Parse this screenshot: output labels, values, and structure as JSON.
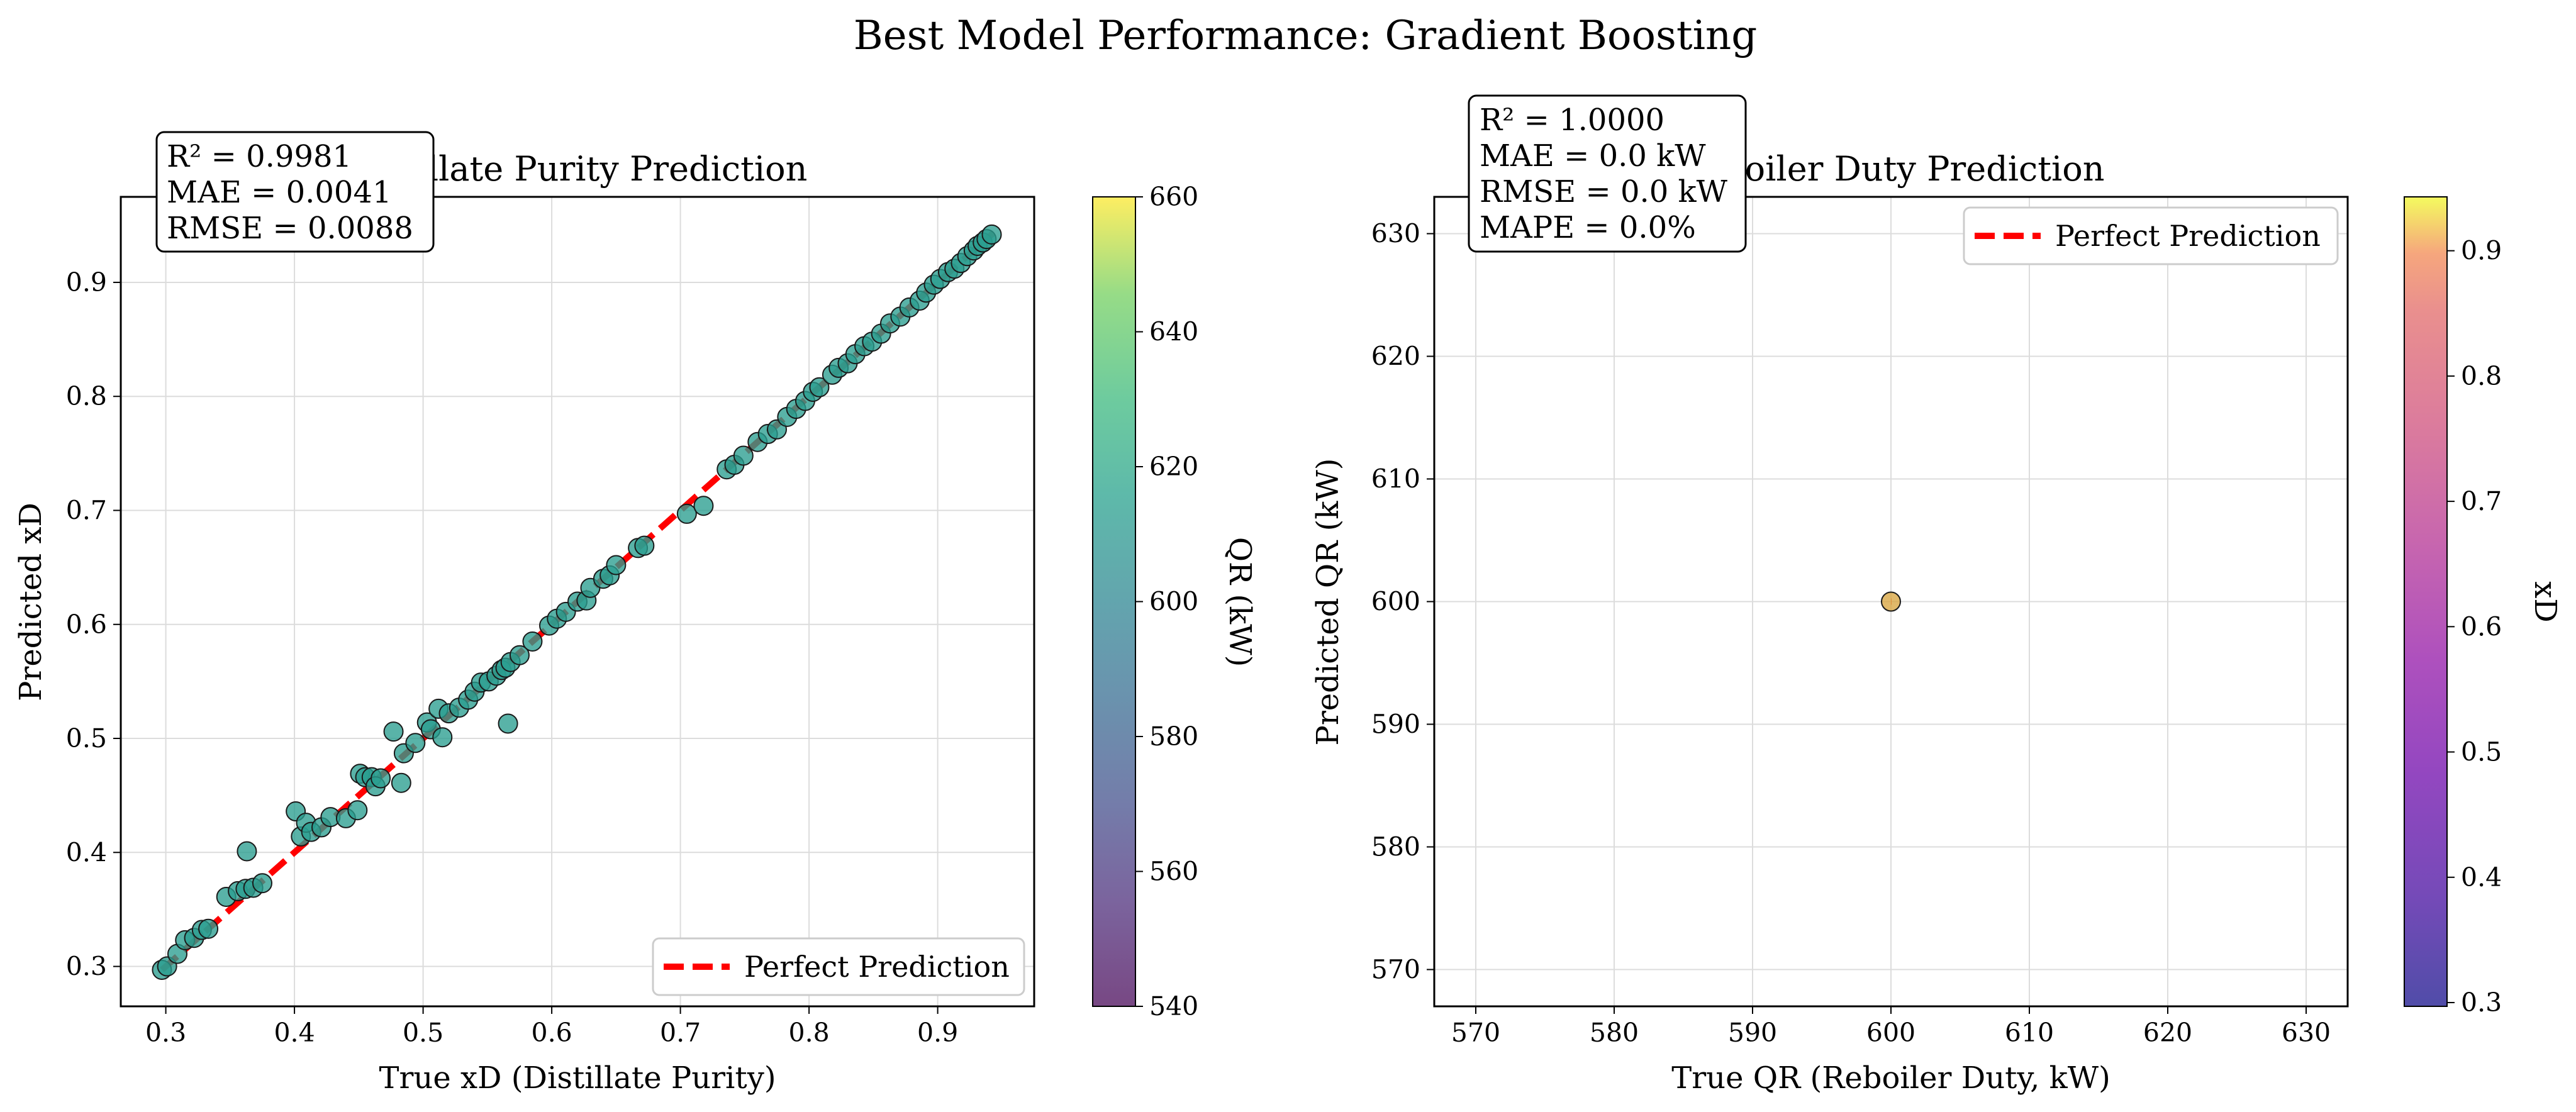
{
  "figure": {
    "suptitle": "Best Model Performance: Gradient Boosting"
  },
  "chart_data": [
    {
      "type": "scatter",
      "title": "Distillate Purity Prediction",
      "xlabel": "True xD (Distillate Purity)",
      "ylabel": "Predicted xD",
      "xlim": [
        0.265,
        0.975
      ],
      "ylim": [
        0.265,
        0.975
      ],
      "xticks": [
        "0.3",
        "0.4",
        "0.5",
        "0.6",
        "0.7",
        "0.8",
        "0.9"
      ],
      "yticks": [
        "0.3",
        "0.4",
        "0.5",
        "0.6",
        "0.7",
        "0.8",
        "0.9"
      ],
      "grid": true,
      "legend": {
        "placement": "lower-right",
        "entries": [
          "Perfect Prediction"
        ]
      },
      "reference_line": {
        "name": "Perfect Prediction",
        "from": [
          0.297,
          0.297
        ],
        "to": [
          0.943,
          0.943
        ],
        "color": "#ff0000",
        "style": "dashed"
      },
      "point_color": "#2a9d8f",
      "stats_box": [
        "R² = 0.9981",
        "MAE = 0.0041",
        "RMSE = 0.0088"
      ],
      "colorbar": {
        "label": "QR (kW)",
        "range": [
          540,
          660
        ],
        "ticks": [
          "540",
          "560",
          "580",
          "600",
          "620",
          "640",
          "660"
        ],
        "colormap": "viridis"
      },
      "points": [
        [
          0.297,
          0.297
        ],
        [
          0.301,
          0.3
        ],
        [
          0.309,
          0.311
        ],
        [
          0.315,
          0.323
        ],
        [
          0.322,
          0.325
        ],
        [
          0.328,
          0.332
        ],
        [
          0.333,
          0.333
        ],
        [
          0.347,
          0.361
        ],
        [
          0.356,
          0.366
        ],
        [
          0.362,
          0.368
        ],
        [
          0.363,
          0.401
        ],
        [
          0.368,
          0.369
        ],
        [
          0.375,
          0.373
        ],
        [
          0.401,
          0.436
        ],
        [
          0.405,
          0.414
        ],
        [
          0.409,
          0.426
        ],
        [
          0.413,
          0.418
        ],
        [
          0.421,
          0.422
        ],
        [
          0.428,
          0.431
        ],
        [
          0.44,
          0.43
        ],
        [
          0.449,
          0.437
        ],
        [
          0.451,
          0.469
        ],
        [
          0.455,
          0.466
        ],
        [
          0.46,
          0.466
        ],
        [
          0.463,
          0.458
        ],
        [
          0.467,
          0.465
        ],
        [
          0.477,
          0.506
        ],
        [
          0.483,
          0.461
        ],
        [
          0.485,
          0.487
        ],
        [
          0.494,
          0.496
        ],
        [
          0.503,
          0.514
        ],
        [
          0.506,
          0.508
        ],
        [
          0.512,
          0.526
        ],
        [
          0.515,
          0.501
        ],
        [
          0.52,
          0.522
        ],
        [
          0.528,
          0.527
        ],
        [
          0.535,
          0.534
        ],
        [
          0.54,
          0.541
        ],
        [
          0.545,
          0.549
        ],
        [
          0.551,
          0.55
        ],
        [
          0.557,
          0.555
        ],
        [
          0.561,
          0.56
        ],
        [
          0.564,
          0.562
        ],
        [
          0.566,
          0.513
        ],
        [
          0.568,
          0.567
        ],
        [
          0.575,
          0.573
        ],
        [
          0.585,
          0.585
        ],
        [
          0.598,
          0.599
        ],
        [
          0.604,
          0.605
        ],
        [
          0.611,
          0.611
        ],
        [
          0.62,
          0.62
        ],
        [
          0.627,
          0.621
        ],
        [
          0.63,
          0.632
        ],
        [
          0.64,
          0.64
        ],
        [
          0.645,
          0.643
        ],
        [
          0.65,
          0.652
        ],
        [
          0.667,
          0.667
        ],
        [
          0.672,
          0.669
        ],
        [
          0.705,
          0.697
        ],
        [
          0.718,
          0.704
        ],
        [
          0.736,
          0.736
        ],
        [
          0.742,
          0.74
        ],
        [
          0.749,
          0.748
        ],
        [
          0.76,
          0.76
        ],
        [
          0.768,
          0.767
        ],
        [
          0.775,
          0.771
        ],
        [
          0.783,
          0.782
        ],
        [
          0.79,
          0.789
        ],
        [
          0.797,
          0.796
        ],
        [
          0.803,
          0.804
        ],
        [
          0.808,
          0.808
        ],
        [
          0.818,
          0.819
        ],
        [
          0.823,
          0.825
        ],
        [
          0.83,
          0.829
        ],
        [
          0.836,
          0.837
        ],
        [
          0.843,
          0.844
        ],
        [
          0.849,
          0.848
        ],
        [
          0.856,
          0.855
        ],
        [
          0.863,
          0.864
        ],
        [
          0.871,
          0.87
        ],
        [
          0.878,
          0.878
        ],
        [
          0.886,
          0.884
        ],
        [
          0.891,
          0.891
        ],
        [
          0.897,
          0.898
        ],
        [
          0.902,
          0.903
        ],
        [
          0.908,
          0.909
        ],
        [
          0.913,
          0.912
        ],
        [
          0.918,
          0.917
        ],
        [
          0.923,
          0.923
        ],
        [
          0.928,
          0.928
        ],
        [
          0.931,
          0.932
        ],
        [
          0.935,
          0.935
        ],
        [
          0.938,
          0.938
        ],
        [
          0.942,
          0.942
        ]
      ]
    },
    {
      "type": "scatter",
      "title": "Reboiler Duty Prediction",
      "xlabel": "True QR (Reboiler Duty, kW)",
      "ylabel": "Predicted QR (kW)",
      "xlim": [
        567,
        633
      ],
      "ylim": [
        567,
        633
      ],
      "xticks": [
        "570",
        "580",
        "590",
        "600",
        "610",
        "620",
        "630"
      ],
      "yticks": [
        "570",
        "580",
        "590",
        "600",
        "610",
        "620",
        "630"
      ],
      "grid": true,
      "legend": {
        "placement": "top-right",
        "entries": [
          "Perfect Prediction"
        ]
      },
      "reference_line": {
        "name": "Perfect Prediction",
        "from": [
          600,
          600
        ],
        "to": [
          600,
          600
        ],
        "color": "#ff0000",
        "style": "dashed"
      },
      "point_color": "#d9a540",
      "stats_box": [
        "R² = 1.0000",
        "MAE = 0.0 kW",
        "RMSE = 0.0 kW",
        "MAPE = 0.0%"
      ],
      "colorbar": {
        "label": "xD",
        "range": [
          0.297,
          0.943
        ],
        "ticks": [
          "0.3",
          "0.4",
          "0.5",
          "0.6",
          "0.7",
          "0.8",
          "0.9"
        ],
        "colormap": "plasma"
      },
      "points": [
        [
          600,
          600
        ]
      ]
    }
  ]
}
